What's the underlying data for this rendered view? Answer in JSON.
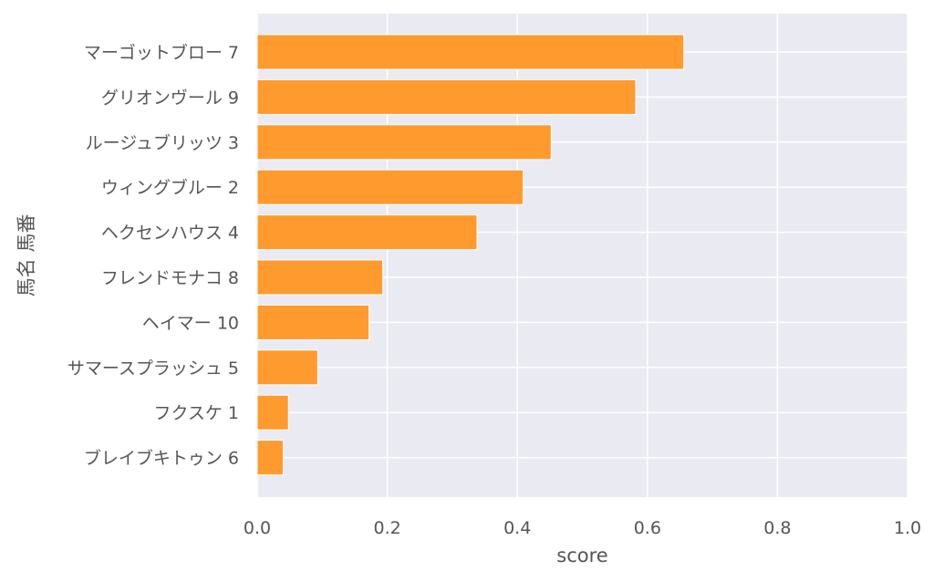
{
  "chart_data": {
    "type": "bar",
    "orientation": "horizontal",
    "xlabel": "score",
    "ylabel": "馬名 馬番",
    "xlim": [
      0,
      1.0
    ],
    "x_ticks": [
      "0.0",
      "0.2",
      "0.4",
      "0.6",
      "0.8",
      "1.0"
    ],
    "grid": true,
    "legend": "none",
    "bar_color": "#ff9a2e",
    "background_color": "#eaeaf2",
    "categories": [
      "マーゴットブロー 7",
      "グリオンヴール 9",
      "ルージュブリッツ 3",
      "ウィングブルー 2",
      "ヘクセンハウス 4",
      "フレンドモナコ 8",
      "ヘイマー 10",
      "サマースプラッシュ 5",
      "フクスケ 1",
      "ブレイブキトゥン 6"
    ],
    "values": [
      0.656,
      0.582,
      0.452,
      0.409,
      0.338,
      0.193,
      0.172,
      0.093,
      0.048,
      0.04
    ]
  }
}
